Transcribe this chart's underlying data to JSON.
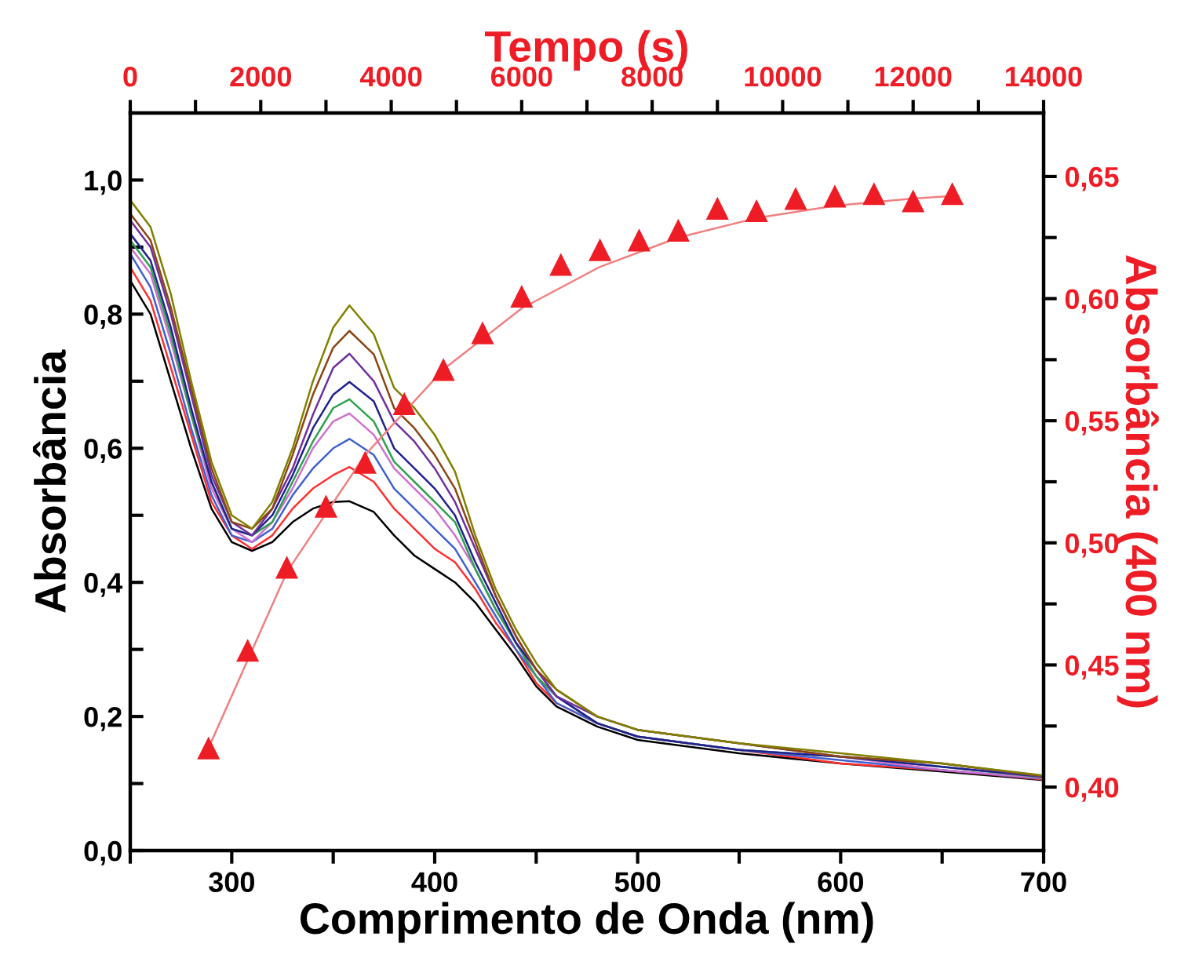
{
  "chart_data": [
    {
      "type": "line",
      "xlabel": "Comprimento de Onda (nm)",
      "ylabel": "Absorbância",
      "x": [
        250,
        260,
        270,
        280,
        290,
        300,
        310,
        320,
        330,
        340,
        350,
        358,
        370,
        380,
        390,
        400,
        410,
        420,
        430,
        440,
        450,
        460,
        480,
        500,
        550,
        600,
        650,
        700
      ],
      "xlim": [
        250,
        700
      ],
      "xticks": [
        {
          "value": 250,
          "label": null
        },
        300,
        {
          "value": 350,
          "label": null
        },
        400,
        {
          "value": 450,
          "label": null
        },
        500,
        {
          "value": 550,
          "label": null
        },
        600,
        {
          "value": 650,
          "label": null
        },
        700
      ],
      "ylim": [
        0,
        1.1
      ],
      "yticks": [
        {
          "value": 0,
          "label": "0,0"
        },
        {
          "value": 0.1,
          "label": null
        },
        {
          "value": 0.2,
          "label": "0,2"
        },
        {
          "value": 0.3,
          "label": null
        },
        {
          "value": 0.4,
          "label": "0,4"
        },
        {
          "value": 0.5,
          "label": null
        },
        {
          "value": 0.6,
          "label": "0,6"
        },
        {
          "value": 0.7,
          "label": null
        },
        {
          "value": 0.8,
          "label": "0,8"
        },
        {
          "value": 0.9,
          "label": null
        },
        {
          "value": 1.0,
          "label": "1,0"
        }
      ],
      "grid": false,
      "legend": false,
      "series": [
        {
          "color": "#000000",
          "values": [
            0.85,
            0.8,
            0.7,
            0.6,
            0.51,
            0.46,
            0.447,
            0.46,
            0.49,
            0.51,
            0.52,
            0.521,
            0.505,
            0.47,
            0.44,
            0.42,
            0.4,
            0.37,
            0.33,
            0.29,
            0.245,
            0.215,
            0.185,
            0.165,
            0.145,
            0.13,
            0.118,
            0.105
          ]
        },
        {
          "color": "#ff3030",
          "values": [
            0.87,
            0.82,
            0.72,
            0.62,
            0.52,
            0.47,
            0.45,
            0.47,
            0.51,
            0.54,
            0.56,
            0.572,
            0.55,
            0.51,
            0.48,
            0.45,
            0.43,
            0.39,
            0.34,
            0.3,
            0.25,
            0.22,
            0.19,
            0.17,
            0.15,
            0.13,
            0.12,
            0.106
          ]
        },
        {
          "color": "#4060d0",
          "values": [
            0.89,
            0.84,
            0.74,
            0.63,
            0.53,
            0.47,
            0.46,
            0.48,
            0.53,
            0.57,
            0.6,
            0.614,
            0.59,
            0.54,
            0.51,
            0.48,
            0.45,
            0.4,
            0.35,
            0.3,
            0.26,
            0.22,
            0.19,
            0.17,
            0.15,
            0.135,
            0.12,
            0.107
          ]
        },
        {
          "color": "#d070d0",
          "values": [
            0.9,
            0.86,
            0.76,
            0.65,
            0.54,
            0.48,
            0.46,
            0.49,
            0.54,
            0.6,
            0.64,
            0.652,
            0.62,
            0.57,
            0.54,
            0.51,
            0.47,
            0.42,
            0.36,
            0.31,
            0.26,
            0.23,
            0.19,
            0.17,
            0.15,
            0.14,
            0.12,
            0.108
          ]
        },
        {
          "color": "#30a050",
          "values": [
            0.91,
            0.87,
            0.77,
            0.65,
            0.55,
            0.48,
            0.47,
            0.49,
            0.55,
            0.61,
            0.66,
            0.673,
            0.64,
            0.58,
            0.55,
            0.52,
            0.49,
            0.42,
            0.36,
            0.31,
            0.26,
            0.23,
            0.19,
            0.17,
            0.15,
            0.14,
            0.125,
            0.109
          ]
        },
        {
          "color": "#202090",
          "values": [
            0.92,
            0.88,
            0.78,
            0.66,
            0.55,
            0.48,
            0.47,
            0.5,
            0.56,
            0.63,
            0.68,
            0.699,
            0.67,
            0.6,
            0.57,
            0.54,
            0.5,
            0.43,
            0.37,
            0.31,
            0.27,
            0.23,
            0.19,
            0.17,
            0.15,
            0.14,
            0.125,
            0.11
          ]
        },
        {
          "color": "#7030a0",
          "values": [
            0.94,
            0.9,
            0.8,
            0.68,
            0.56,
            0.49,
            0.47,
            0.51,
            0.57,
            0.65,
            0.72,
            0.741,
            0.7,
            0.64,
            0.61,
            0.57,
            0.52,
            0.45,
            0.38,
            0.32,
            0.27,
            0.23,
            0.2,
            0.18,
            0.16,
            0.14,
            0.13,
            0.11
          ]
        },
        {
          "color": "#8b4513",
          "values": [
            0.95,
            0.91,
            0.81,
            0.69,
            0.57,
            0.49,
            0.48,
            0.51,
            0.59,
            0.68,
            0.75,
            0.775,
            0.74,
            0.66,
            0.63,
            0.59,
            0.54,
            0.46,
            0.38,
            0.32,
            0.27,
            0.24,
            0.2,
            0.18,
            0.16,
            0.14,
            0.13,
            0.111
          ]
        },
        {
          "color": "#808000",
          "values": [
            0.97,
            0.93,
            0.83,
            0.7,
            0.58,
            0.5,
            0.48,
            0.52,
            0.6,
            0.7,
            0.78,
            0.813,
            0.77,
            0.69,
            0.66,
            0.62,
            0.565,
            0.47,
            0.39,
            0.33,
            0.28,
            0.24,
            0.2,
            0.18,
            0.16,
            0.145,
            0.13,
            0.112
          ]
        }
      ]
    },
    {
      "type": "scatter",
      "xlabel": "Tempo (s)",
      "ylabel": "Absorbância (400 nm)",
      "xlim": [
        0,
        14000
      ],
      "xticks": [
        0,
        {
          "value": 1000,
          "label": null
        },
        2000,
        {
          "value": 3000,
          "label": null
        },
        4000,
        {
          "value": 5000,
          "label": null
        },
        6000,
        {
          "value": 7000,
          "label": null
        },
        8000,
        {
          "value": 9000,
          "label": null
        },
        10000,
        {
          "value": 11000,
          "label": null
        },
        12000,
        {
          "value": 13000,
          "label": null
        },
        14000
      ],
      "ylim": [
        0.374,
        0.676
      ],
      "yticks": [
        {
          "value": 0.4,
          "label": "0,40"
        },
        {
          "value": 0.425,
          "label": null
        },
        {
          "value": 0.45,
          "label": "0,45"
        },
        {
          "value": 0.475,
          "label": null
        },
        {
          "value": 0.5,
          "label": "0,50"
        },
        {
          "value": 0.525,
          "label": null
        },
        {
          "value": 0.55,
          "label": "0,55"
        },
        {
          "value": 0.575,
          "label": null
        },
        {
          "value": 0.6,
          "label": "0,60"
        },
        {
          "value": 0.625,
          "label": null
        },
        {
          "value": 0.65,
          "label": "0,65"
        }
      ],
      "grid": false,
      "legend": false,
      "series": [
        {
          "type": "line",
          "color": "#f08080",
          "x": [
            1200,
            2400,
            3600,
            4800,
            6000,
            7200,
            8400,
            9600,
            10800,
            12000,
            12600
          ],
          "values": [
            0.416,
            0.488,
            0.536,
            0.571,
            0.596,
            0.613,
            0.625,
            0.633,
            0.638,
            0.641,
            0.642
          ]
        },
        {
          "type": "scatter",
          "marker": "triangle",
          "color": "#ee1c25",
          "x": [
            1200,
            1800,
            2400,
            3000,
            3600,
            4200,
            4800,
            5400,
            6000,
            6600,
            7200,
            7800,
            8400,
            9000,
            9600,
            10200,
            10800,
            11400,
            12000,
            12600
          ],
          "values": [
            0.416,
            0.456,
            0.49,
            0.515,
            0.533,
            0.557,
            0.571,
            0.586,
            0.601,
            0.614,
            0.62,
            0.624,
            0.628,
            0.637,
            0.636,
            0.641,
            0.642,
            0.643,
            0.64,
            0.643
          ]
        }
      ]
    }
  ]
}
